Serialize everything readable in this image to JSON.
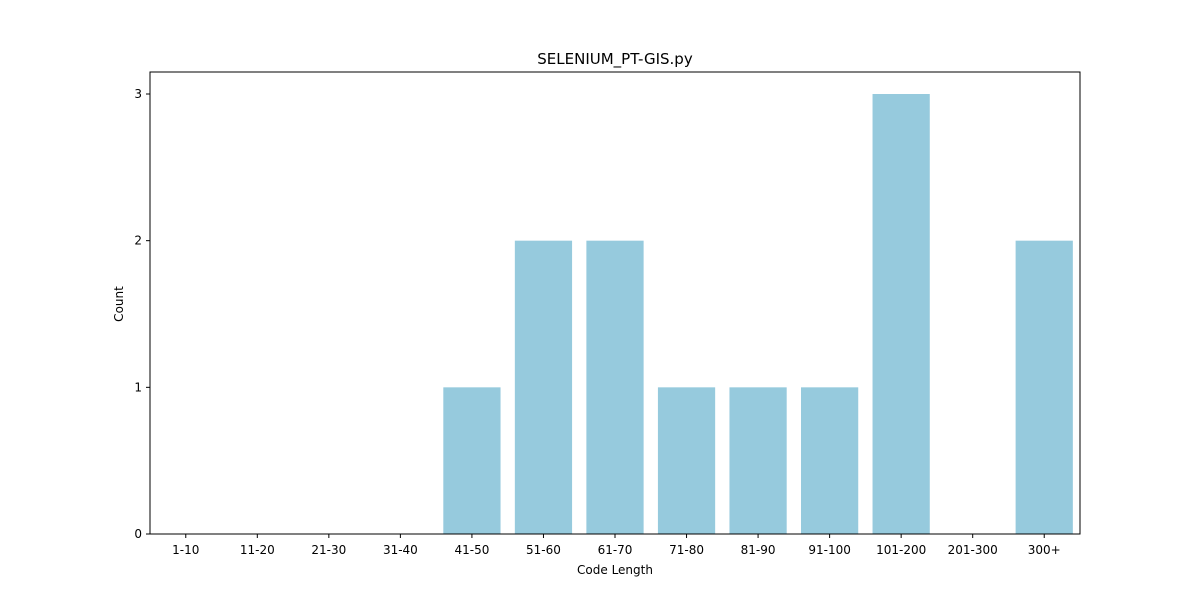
{
  "chart_data": {
    "type": "bar",
    "title": "SELENIUM_PT-GIS.py",
    "xlabel": "Code Length",
    "ylabel": "Count",
    "categories": [
      "1-10",
      "11-20",
      "21-30",
      "31-40",
      "41-50",
      "51-60",
      "61-70",
      "71-80",
      "81-90",
      "91-100",
      "101-200",
      "201-300",
      "300+"
    ],
    "values": [
      0,
      0,
      0,
      0,
      1,
      2,
      2,
      1,
      1,
      1,
      3,
      0,
      2
    ],
    "ylim": [
      0,
      3.15
    ],
    "yticks": [
      0,
      1,
      2,
      3
    ],
    "grid": false,
    "bar_color": "#96cadd"
  }
}
